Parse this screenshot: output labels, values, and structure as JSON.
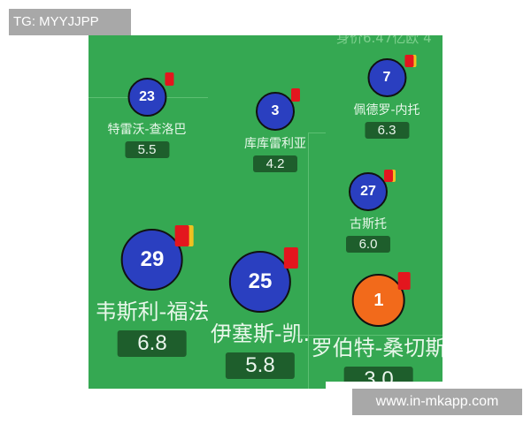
{
  "watermark_top": "TG: MYYJJPP",
  "watermark_bottom": "www.in-mkapp.com",
  "top_note": "身价6.47亿欧 4",
  "colors": {
    "pitch": "#35a852",
    "outfield": "#2a3fc0",
    "goalkeeper": "#f26a1b",
    "red_card": "#e3161e",
    "yellow_card": "#f0c020"
  },
  "players": [
    {
      "number": "23",
      "name": "特雷沃-查洛巴",
      "rating": "5.5",
      "cards": [
        "red"
      ]
    },
    {
      "number": "3",
      "name": "库库雷利亚",
      "rating": "4.2",
      "cards": [
        "red"
      ]
    },
    {
      "number": "7",
      "name": "佩德罗-内托",
      "rating": "6.3",
      "cards": [
        "red",
        "yellow"
      ]
    },
    {
      "number": "27",
      "name": "古斯托",
      "rating": "6.0",
      "cards": [
        "red",
        "yellow"
      ]
    },
    {
      "number": "29",
      "name": "韦斯利-福法",
      "rating": "6.8",
      "cards": [
        "red",
        "yellow"
      ]
    },
    {
      "number": "25",
      "name": "伊塞斯-凯.",
      "rating": "5.8",
      "cards": [
        "red"
      ]
    },
    {
      "number": "1",
      "name": "罗伯特-桑切斯",
      "rating": "3.0",
      "cards": [
        "red"
      ]
    }
  ]
}
